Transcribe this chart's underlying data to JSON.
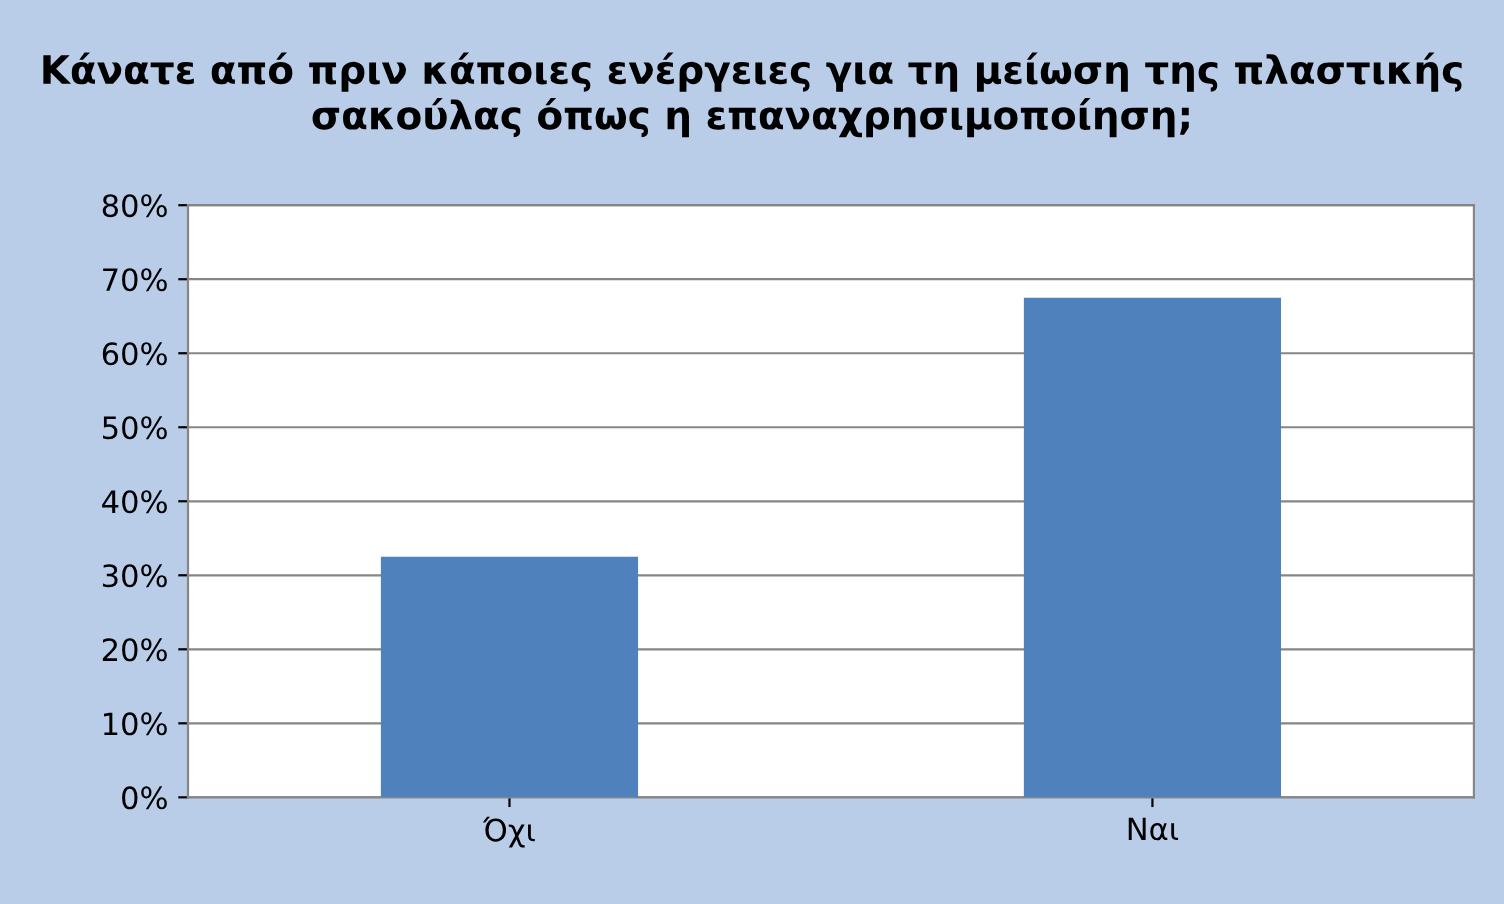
{
  "chart_data": {
    "type": "bar",
    "title": "Κάνατε από πριν κάποιες ενέργειες για τη μείωση της πλαστικής σακούλας όπως η επαναχρησιμοποίηση;",
    "categories": [
      "Όχι",
      "Ναι"
    ],
    "values": [
      32.5,
      67.5
    ],
    "color": "#4f81bd",
    "ylim": [
      0,
      80
    ],
    "yticks": [
      {
        "value": 0,
        "label": "0%"
      },
      {
        "value": 10,
        "label": "10%"
      },
      {
        "value": 20,
        "label": "20%"
      },
      {
        "value": 30,
        "label": "30%"
      },
      {
        "value": 40,
        "label": "40%"
      },
      {
        "value": 50,
        "label": "50%"
      },
      {
        "value": 60,
        "label": "60%"
      },
      {
        "value": 70,
        "label": "70%"
      },
      {
        "value": 80,
        "label": "80%"
      }
    ],
    "grid": "y"
  }
}
